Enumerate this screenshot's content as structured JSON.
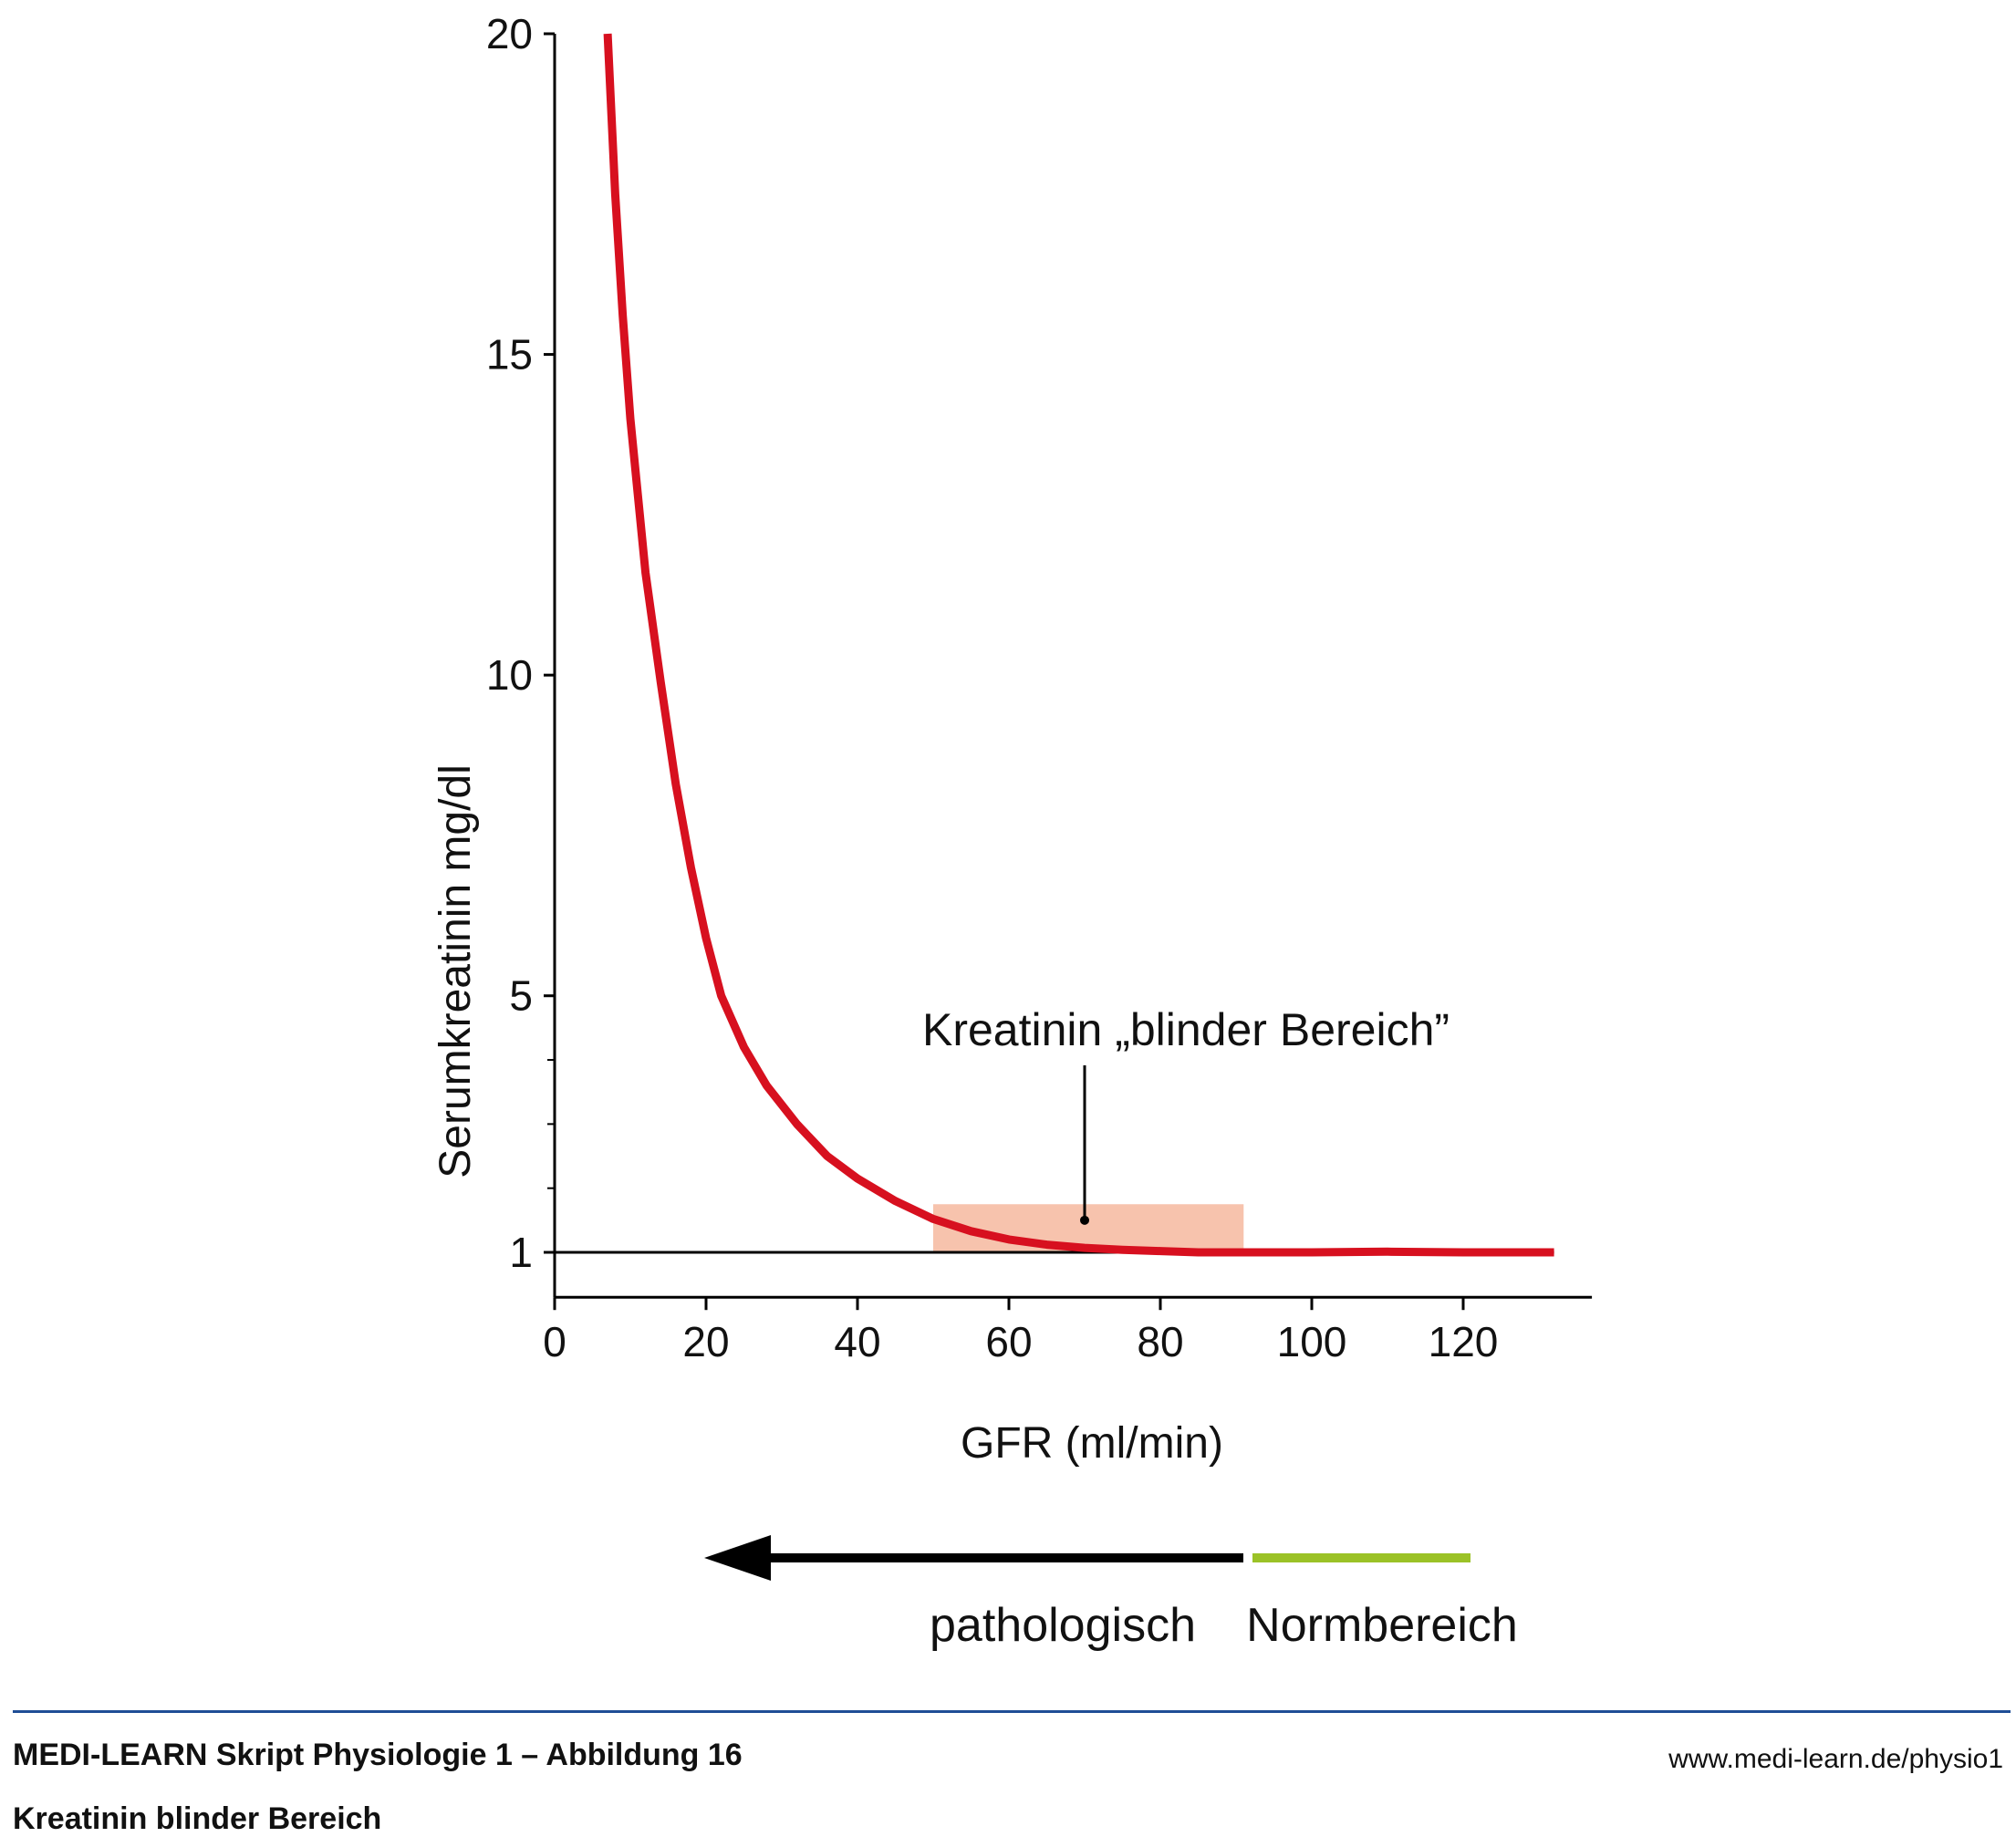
{
  "chart_data": {
    "type": "line",
    "title": "",
    "xlabel": "GFR (ml/min)",
    "ylabel": "Serumkreatinin mg/dl",
    "xlim": [
      0,
      137
    ],
    "ylim": [
      0,
      20
    ],
    "x_ticks": [
      0,
      20,
      40,
      60,
      80,
      100,
      120
    ],
    "y_ticks": [
      1,
      5,
      10,
      15,
      20
    ],
    "y_minor_ticks": [
      2,
      3,
      4
    ],
    "reference_line_y": 1,
    "series": [
      {
        "color": "#d7101f",
        "x": [
          7,
          8,
          9,
          10,
          12,
          14,
          16,
          18,
          20,
          22,
          25,
          28,
          32,
          36,
          40,
          45,
          50,
          55,
          60,
          65,
          70,
          75,
          80,
          85,
          90,
          100,
          110,
          120,
          132
        ],
        "y": [
          20,
          17.5,
          15.6,
          14.0,
          11.6,
          9.9,
          8.3,
          7.0,
          5.9,
          5.0,
          4.2,
          3.6,
          3.0,
          2.5,
          2.15,
          1.8,
          1.52,
          1.33,
          1.2,
          1.12,
          1.07,
          1.04,
          1.02,
          1.0,
          1.0,
          1.0,
          1.01,
          1.0,
          1.0
        ]
      }
    ],
    "blind_zone": {
      "x_range": [
        50,
        91
      ],
      "y_range": [
        1,
        1.75
      ],
      "color": "#f7c3ad"
    },
    "annotations": [
      {
        "text": "Kreatinin „blinder Bereich”",
        "x": 70,
        "y": 1.5
      }
    ]
  },
  "range_bar": {
    "pathological_label": "pathologisch",
    "normal_label": "Normbereich",
    "pathological_color": "#000000",
    "normal_color": "#9bc227"
  },
  "footer": {
    "title": "MEDI-LEARN Skript Physiologie 1 – Abbildung 16",
    "subtitle": "Kreatinin blinder Bereich",
    "url": "www.medi-learn.de/physio1",
    "rule_color": "#1f4e96"
  }
}
